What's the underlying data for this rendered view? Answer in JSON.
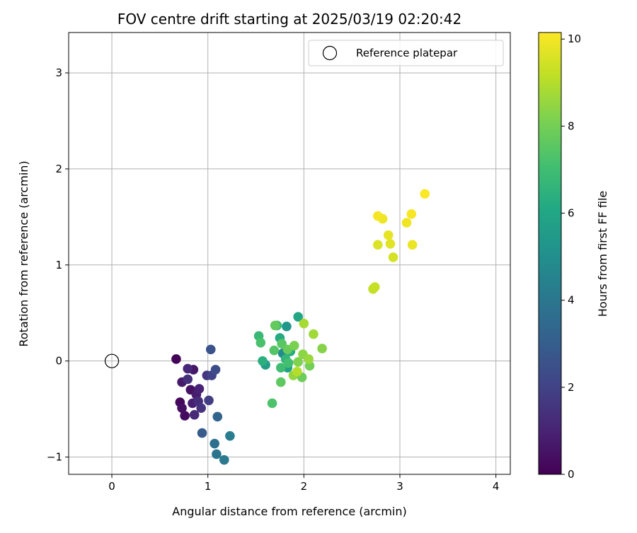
{
  "chart_data": {
    "type": "scatter",
    "title": "FOV centre drift starting at 2025/03/19 02:20:42",
    "xlabel": "Angular distance from reference (arcmin)",
    "ylabel": "Rotation from reference (arcmin)",
    "xlim": [
      -0.45,
      4.15
    ],
    "ylim": [
      -1.18,
      3.42
    ],
    "xticks": [
      0,
      1,
      2,
      3,
      4
    ],
    "yticks": [
      -1,
      0,
      1,
      2,
      3
    ],
    "grid": true,
    "legend": {
      "placement": "top-right",
      "entries": [
        "Reference platepar"
      ]
    },
    "reference_point": {
      "x": 0,
      "y": 0,
      "label": "Reference platepar"
    },
    "colorbar": {
      "label": "Hours from first FF file",
      "colormap": "viridis",
      "range": [
        0,
        10.15
      ],
      "ticks": [
        0,
        2,
        4,
        6,
        8,
        10
      ]
    },
    "points": [
      {
        "x": 0.67,
        "y": 0.02,
        "hours": 0.1
      },
      {
        "x": 0.71,
        "y": -0.43,
        "hours": 0.2
      },
      {
        "x": 0.76,
        "y": -0.57,
        "hours": 0.3
      },
      {
        "x": 0.73,
        "y": -0.49,
        "hours": 0.4
      },
      {
        "x": 0.82,
        "y": -0.3,
        "hours": 0.5
      },
      {
        "x": 0.85,
        "y": -0.09,
        "hours": 0.6
      },
      {
        "x": 0.73,
        "y": -0.22,
        "hours": 0.7
      },
      {
        "x": 0.88,
        "y": -0.35,
        "hours": 0.8
      },
      {
        "x": 0.84,
        "y": -0.44,
        "hours": 0.9
      },
      {
        "x": 0.91,
        "y": -0.29,
        "hours": 1.0
      },
      {
        "x": 0.79,
        "y": -0.08,
        "hours": 1.1
      },
      {
        "x": 0.86,
        "y": -0.56,
        "hours": 1.2
      },
      {
        "x": 0.9,
        "y": -0.42,
        "hours": 1.3
      },
      {
        "x": 0.79,
        "y": -0.19,
        "hours": 1.4
      },
      {
        "x": 0.93,
        "y": -0.49,
        "hours": 1.5
      },
      {
        "x": 0.99,
        "y": -0.15,
        "hours": 1.6
      },
      {
        "x": 1.01,
        "y": -0.41,
        "hours": 1.8
      },
      {
        "x": 1.04,
        "y": -0.15,
        "hours": 2.0
      },
      {
        "x": 1.08,
        "y": -0.09,
        "hours": 2.3
      },
      {
        "x": 1.03,
        "y": 0.12,
        "hours": 2.6
      },
      {
        "x": 0.94,
        "y": -0.75,
        "hours": 2.9
      },
      {
        "x": 1.1,
        "y": -0.58,
        "hours": 3.3
      },
      {
        "x": 1.07,
        "y": -0.86,
        "hours": 3.7
      },
      {
        "x": 1.09,
        "y": -0.97,
        "hours": 3.9
      },
      {
        "x": 1.17,
        "y": -1.03,
        "hours": 4.1
      },
      {
        "x": 1.23,
        "y": -0.78,
        "hours": 4.3
      },
      {
        "x": 1.78,
        "y": 0.08,
        "hours": 4.8
      },
      {
        "x": 1.82,
        "y": 0.36,
        "hours": 5.3
      },
      {
        "x": 1.6,
        "y": -0.04,
        "hours": 5.6
      },
      {
        "x": 1.83,
        "y": -0.07,
        "hours": 5.8
      },
      {
        "x": 1.94,
        "y": 0.46,
        "hours": 6.0
      },
      {
        "x": 1.75,
        "y": 0.24,
        "hours": 6.2
      },
      {
        "x": 1.86,
        "y": 0.1,
        "hours": 6.3
      },
      {
        "x": 1.57,
        "y": 0.0,
        "hours": 6.4
      },
      {
        "x": 1.81,
        "y": 0.02,
        "hours": 6.6
      },
      {
        "x": 1.53,
        "y": 0.26,
        "hours": 6.8
      },
      {
        "x": 1.72,
        "y": 0.37,
        "hours": 6.9
      },
      {
        "x": 1.76,
        "y": -0.07,
        "hours": 7.0
      },
      {
        "x": 1.84,
        "y": -0.02,
        "hours": 7.1
      },
      {
        "x": 1.55,
        "y": 0.19,
        "hours": 7.2
      },
      {
        "x": 1.67,
        "y": -0.44,
        "hours": 7.3
      },
      {
        "x": 1.69,
        "y": 0.11,
        "hours": 7.4
      },
      {
        "x": 1.77,
        "y": 0.18,
        "hours": 7.5
      },
      {
        "x": 1.76,
        "y": -0.22,
        "hours": 7.6
      },
      {
        "x": 1.7,
        "y": 0.37,
        "hours": 7.7
      },
      {
        "x": 1.83,
        "y": 0.12,
        "hours": 7.8
      },
      {
        "x": 1.98,
        "y": -0.17,
        "hours": 7.9
      },
      {
        "x": 2.06,
        "y": -0.05,
        "hours": 8.0
      },
      {
        "x": 1.9,
        "y": 0.16,
        "hours": 8.1
      },
      {
        "x": 1.94,
        "y": -0.01,
        "hours": 8.2
      },
      {
        "x": 2.19,
        "y": 0.13,
        "hours": 8.3
      },
      {
        "x": 1.99,
        "y": 0.07,
        "hours": 8.4
      },
      {
        "x": 1.89,
        "y": -0.15,
        "hours": 8.5
      },
      {
        "x": 2.05,
        "y": 0.02,
        "hours": 8.6
      },
      {
        "x": 2.1,
        "y": 0.28,
        "hours": 8.7
      },
      {
        "x": 2.0,
        "y": 0.39,
        "hours": 8.8
      },
      {
        "x": 1.93,
        "y": -0.11,
        "hours": 9.0
      },
      {
        "x": 2.72,
        "y": 0.75,
        "hours": 9.2
      },
      {
        "x": 2.74,
        "y": 0.77,
        "hours": 9.3
      },
      {
        "x": 2.93,
        "y": 1.08,
        "hours": 9.5
      },
      {
        "x": 2.77,
        "y": 1.21,
        "hours": 9.6
      },
      {
        "x": 2.9,
        "y": 1.22,
        "hours": 9.7
      },
      {
        "x": 2.88,
        "y": 1.31,
        "hours": 9.8
      },
      {
        "x": 3.13,
        "y": 1.21,
        "hours": 9.85
      },
      {
        "x": 2.82,
        "y": 1.48,
        "hours": 9.9
      },
      {
        "x": 3.07,
        "y": 1.44,
        "hours": 9.95
      },
      {
        "x": 2.77,
        "y": 1.51,
        "hours": 10.0
      },
      {
        "x": 3.12,
        "y": 1.53,
        "hours": 10.05
      },
      {
        "x": 3.26,
        "y": 1.74,
        "hours": 10.1
      }
    ]
  }
}
